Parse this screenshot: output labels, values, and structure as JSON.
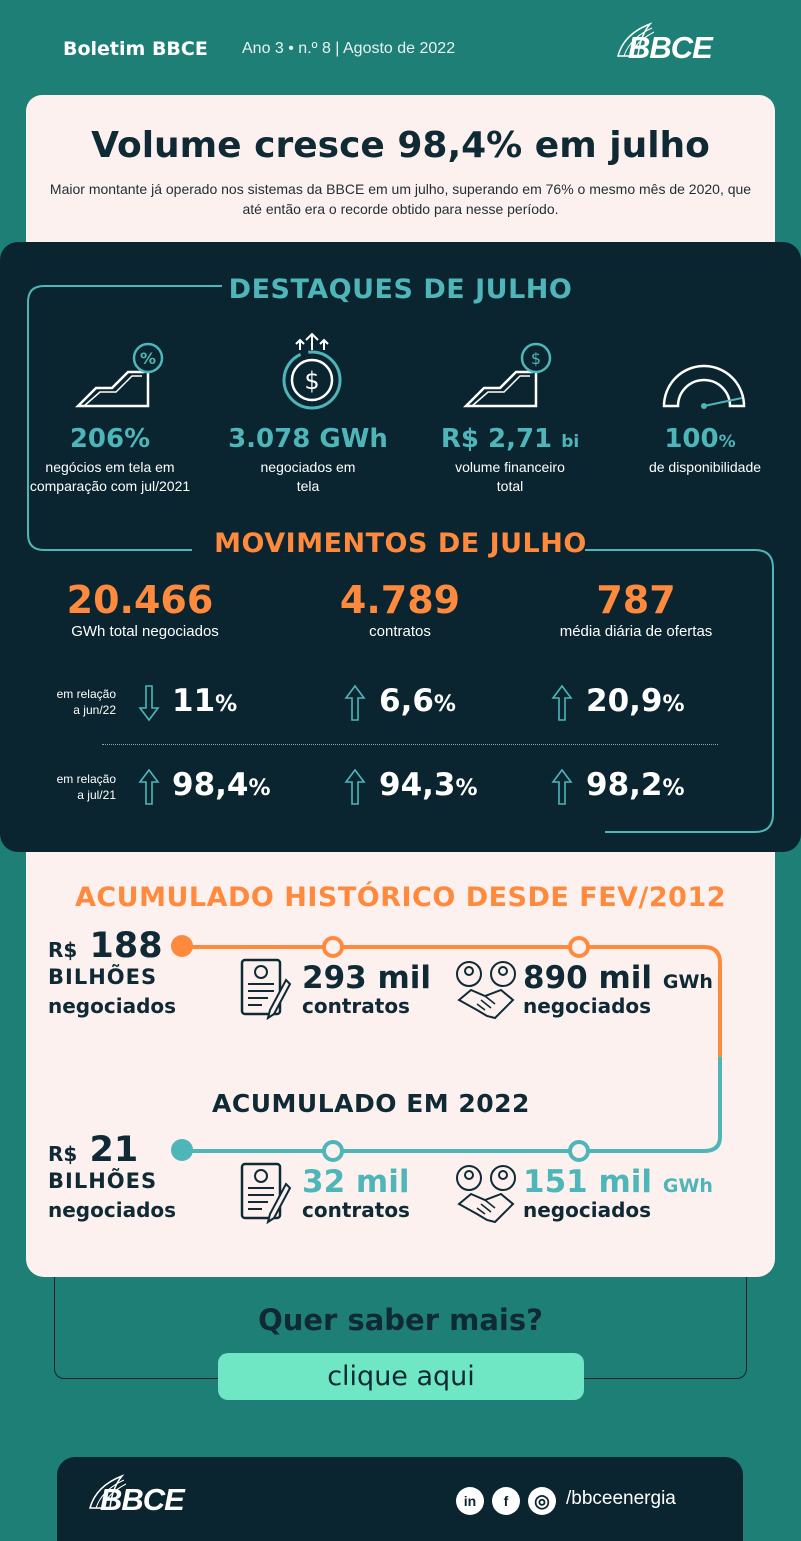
{
  "header": {
    "title": "Boletim BBCE",
    "issue": "Ano 3 • n.º 8 | Agosto de 2022",
    "logo_text": "BBCE"
  },
  "hero": {
    "headline": "Volume cresce 98,4% em julho",
    "subhead": "Maior montante já operado nos sistemas da BBCE em um julho, superando em 76% o mesmo mês de 2020, que até então era o recorde obtido para nesse período."
  },
  "destaques": {
    "title": "DESTAQUES DE JULHO",
    "items": [
      {
        "icon": "growth-chart-percent-icon",
        "value": "206%",
        "value_suffix": "",
        "label": "negócios em tela em comparação com jul/2021"
      },
      {
        "icon": "dollar-coin-icon",
        "value": "3.078 GWh",
        "value_suffix": "",
        "label": "negociados em tela"
      },
      {
        "icon": "growth-chart-dollar-icon",
        "value": "R$ 2,71",
        "value_suffix": "bi",
        "label": "volume financeiro total"
      },
      {
        "icon": "gauge-icon",
        "value": "100",
        "value_suffix": "%",
        "label": "de disponibilidade"
      }
    ]
  },
  "movimentos": {
    "title": "MOVIMENTOS DE JULHO",
    "items": [
      {
        "value": "20.466",
        "label": "GWh total negociados"
      },
      {
        "value": "4.789",
        "label": "contratos"
      },
      {
        "value": "787",
        "label": "média diária de ofertas"
      }
    ],
    "rows": [
      {
        "label_line1": "em relação",
        "label_line2": "a jun/22",
        "cells": [
          {
            "dir": "down",
            "value": "11",
            "unit": "%"
          },
          {
            "dir": "up",
            "value": "6,6",
            "unit": "%"
          },
          {
            "dir": "up",
            "value": "20,9",
            "unit": "%"
          }
        ]
      },
      {
        "label_line1": "em relação",
        "label_line2": "a jul/21",
        "cells": [
          {
            "dir": "up",
            "value": "98,4",
            "unit": "%"
          },
          {
            "dir": "up",
            "value": "94,3",
            "unit": "%"
          },
          {
            "dir": "up",
            "value": "98,2",
            "unit": "%"
          }
        ]
      }
    ]
  },
  "acumulado_historico": {
    "title": "ACUMULADO HISTÓRICO DESDE FEV/2012",
    "money_prefix": "R$",
    "money_value": "188",
    "money_unit": "BILHÕES",
    "money_label": "negociados",
    "contracts_value": "293 mil",
    "contracts_label": "contratos",
    "energy_value": "890 mil",
    "energy_unit": "GWh",
    "energy_label": "negociados",
    "accent": "#ff8a3d"
  },
  "acumulado_2022": {
    "title": "ACUMULADO EM 2022",
    "money_prefix": "R$",
    "money_value": "21",
    "money_unit": "BILHÕES",
    "money_label": "negociados",
    "contracts_value": "32 mil",
    "contracts_label": "contratos",
    "energy_value": "151 mil",
    "energy_unit": "GWh",
    "energy_label": "negociados",
    "accent": "#4eb5b8"
  },
  "cta": {
    "question": "Quer saber mais?",
    "button_label": "clique aqui"
  },
  "footer": {
    "logo_text": "BBCE",
    "social": [
      {
        "icon": "linkedin-icon",
        "glyph": "in"
      },
      {
        "icon": "facebook-icon",
        "glyph": "f"
      },
      {
        "icon": "instagram-icon",
        "glyph": "◎"
      }
    ],
    "handle": "/bbceenergia"
  },
  "colors": {
    "background": "#1e7f76",
    "dark_panel": "#0a2530",
    "light_card": "#fdf1ef",
    "teal": "#4eb5b8",
    "orange": "#ff8a3d",
    "button": "#6fe6c4"
  }
}
